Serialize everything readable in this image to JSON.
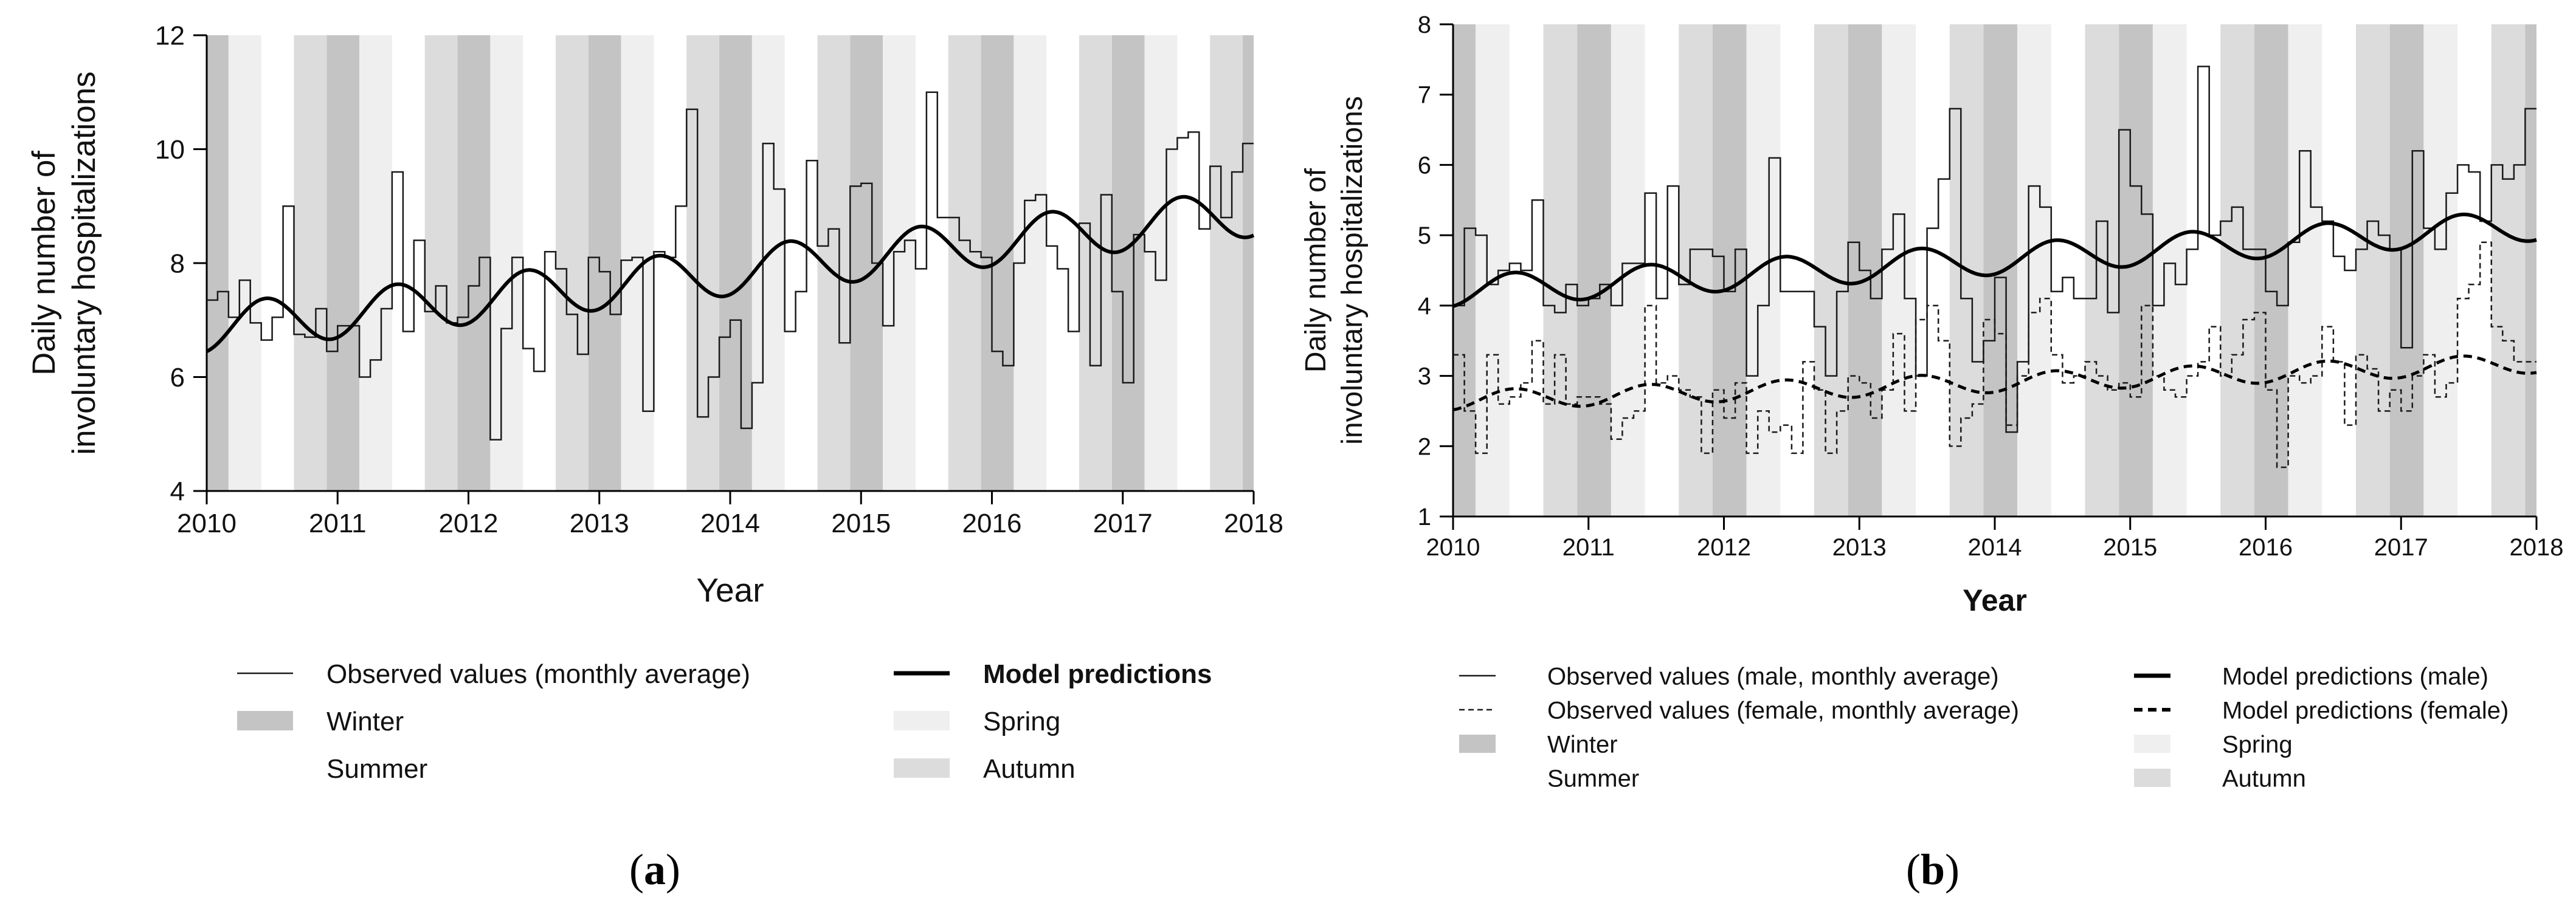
{
  "colors": {
    "winter": "#c4c4c4",
    "spring": "#efefef",
    "autumn": "#dcdcdc",
    "summer": "#ffffff",
    "observed": "#1a1a1a",
    "model": "#000000"
  },
  "captions": [
    "a",
    "b"
  ],
  "chart_data": [
    {
      "id": "a",
      "type": "line",
      "ylabel": [
        "Daily number of",
        "involuntary hospitalizations"
      ],
      "xlabel": "Year",
      "xlim": [
        2010,
        2018
      ],
      "ylim": [
        4,
        12
      ],
      "yticks": [
        4,
        6,
        8,
        10,
        12
      ],
      "xticks": [
        2010,
        2011,
        2012,
        2013,
        2014,
        2015,
        2016,
        2017,
        2018
      ],
      "seasons": {
        "note": "bands start Dec 1 (winter), Mar 1 (spring), Jun 1 (summer), Sep 1 (autumn)",
        "months": {
          "winter": 11,
          "spring": 2,
          "summer": 5,
          "autumn": 8
        }
      },
      "series": [
        {
          "name": "Observed values (monthly average)",
          "style": "observed-solid",
          "monthly": [
            7.35,
            7.5,
            7.05,
            7.7,
            6.95,
            6.65,
            7.05,
            9.0,
            6.75,
            6.7,
            7.2,
            6.45,
            6.9,
            6.9,
            6.0,
            6.3,
            7.2,
            9.6,
            6.8,
            8.4,
            7.15,
            7.6,
            6.95,
            7.05,
            7.6,
            8.1,
            4.9,
            6.85,
            8.1,
            6.5,
            6.1,
            8.2,
            7.9,
            7.1,
            6.4,
            8.1,
            7.85,
            7.1,
            8.05,
            8.1,
            5.4,
            8.2,
            8.1,
            9.0,
            10.7,
            5.3,
            6.0,
            6.7,
            7.0,
            5.1,
            5.9,
            10.1,
            9.3,
            6.8,
            7.5,
            9.8,
            8.3,
            8.6,
            6.6,
            9.35,
            9.4,
            8.0,
            6.9,
            8.2,
            8.4,
            7.9,
            11.0,
            8.8,
            8.8,
            8.4,
            8.2,
            8.1,
            6.45,
            6.2,
            8.0,
            9.1,
            9.2,
            8.3,
            7.9,
            6.8,
            8.7,
            6.2,
            9.2,
            7.5,
            5.9,
            8.5,
            8.2,
            7.7,
            10.0,
            10.2,
            10.3,
            8.6,
            9.7,
            8.8,
            9.6,
            10.1
          ]
        },
        {
          "name": "Model predictions",
          "style": "model-solid",
          "model": {
            "a": 6.85,
            "b": 0.245,
            "c": 0.0012,
            "amp": 0.42,
            "peak": 0.45
          }
        }
      ],
      "legend": [
        {
          "key": "observed-solid",
          "label": "Observed values (monthly average)"
        },
        {
          "key": "model-solid",
          "label": "Model predictions"
        },
        {
          "key": "winter",
          "label": "Winter"
        },
        {
          "key": "spring",
          "label": "Spring"
        },
        {
          "key": "summer",
          "label": "Summer"
        },
        {
          "key": "autumn",
          "label": "Autumn"
        }
      ]
    },
    {
      "id": "b",
      "type": "line",
      "ylabel": [
        "Daily number of",
        "involuntary hospitalizations"
      ],
      "xlabel": "Year",
      "xlim": [
        2010,
        2018
      ],
      "ylim": [
        1,
        8
      ],
      "yticks": [
        1,
        2,
        3,
        4,
        5,
        6,
        7,
        8
      ],
      "xticks": [
        2010,
        2011,
        2012,
        2013,
        2014,
        2015,
        2016,
        2017,
        2018
      ],
      "seasons": {
        "note": "bands start Dec 1 (winter), Mar 1 (spring), Jun 1 (summer), Sep 1 (autumn)",
        "months": {
          "winter": 11,
          "spring": 2,
          "summer": 5,
          "autumn": 8
        }
      },
      "series": [
        {
          "name": "Observed values (male, monthly average)",
          "style": "observed-solid",
          "monthly": [
            4.0,
            5.1,
            5.0,
            4.3,
            4.5,
            4.6,
            4.5,
            5.5,
            4.0,
            3.9,
            4.3,
            4.0,
            4.1,
            4.3,
            4.0,
            4.6,
            4.6,
            5.6,
            4.1,
            5.7,
            4.3,
            4.8,
            4.8,
            4.7,
            4.2,
            4.8,
            3.0,
            4.0,
            6.1,
            4.2,
            4.2,
            4.2,
            3.7,
            3.0,
            4.2,
            4.9,
            4.5,
            4.1,
            4.8,
            5.3,
            4.1,
            3.0,
            5.1,
            5.8,
            6.8,
            4.1,
            3.2,
            3.5,
            4.4,
            2.2,
            3.2,
            5.7,
            5.4,
            4.2,
            4.4,
            4.1,
            4.1,
            5.2,
            3.9,
            6.5,
            5.7,
            5.3,
            4.0,
            4.6,
            4.3,
            4.8,
            7.4,
            5.0,
            5.2,
            5.4,
            4.8,
            4.8,
            4.2,
            4.0,
            4.9,
            6.2,
            5.4,
            5.2,
            4.7,
            4.5,
            4.8,
            5.2,
            5.0,
            4.8,
            3.4,
            6.2,
            5.1,
            4.8,
            5.6,
            6.0,
            5.9,
            5.2,
            6.0,
            5.8,
            6.0,
            6.8
          ]
        },
        {
          "name": "Observed values (female, monthly average)",
          "style": "observed-dashed",
          "monthly": [
            3.3,
            2.5,
            1.9,
            3.3,
            2.6,
            2.7,
            2.9,
            3.5,
            2.6,
            3.3,
            2.6,
            2.7,
            2.7,
            2.6,
            2.1,
            2.4,
            2.5,
            4.0,
            2.9,
            3.0,
            2.8,
            2.7,
            1.9,
            2.8,
            2.4,
            2.9,
            1.9,
            2.5,
            2.2,
            2.3,
            1.9,
            3.2,
            2.8,
            1.9,
            2.5,
            3.0,
            2.9,
            2.4,
            2.8,
            3.6,
            2.5,
            3.8,
            4.0,
            3.5,
            2.0,
            2.4,
            2.6,
            3.8,
            3.6,
            2.3,
            3.0,
            3.9,
            4.1,
            3.3,
            2.9,
            3.0,
            3.2,
            3.0,
            2.8,
            2.9,
            2.7,
            4.0,
            3.0,
            2.8,
            2.7,
            3.0,
            3.2,
            3.7,
            3.0,
            3.3,
            3.8,
            3.9,
            2.8,
            1.7,
            3.0,
            2.9,
            3.0,
            3.7,
            3.2,
            2.3,
            3.3,
            3.1,
            2.5,
            2.8,
            2.5,
            3.0,
            3.3,
            2.7,
            2.9,
            4.1,
            4.3,
            4.9,
            3.7,
            3.5,
            3.2,
            3.2
          ]
        },
        {
          "name": "Model predictions (male)",
          "style": "model-solid",
          "model": {
            "a": 4.2,
            "b": 0.11,
            "c": 0.001,
            "amp": 0.22,
            "peak": 0.45
          }
        },
        {
          "name": "Model predictions (female)",
          "style": "model-dashed",
          "model": {
            "a": 2.65,
            "b": 0.06,
            "c": 0.0008,
            "amp": 0.14,
            "peak": 0.45
          }
        }
      ],
      "legend": [
        {
          "key": "observed-solid",
          "label": "Observed values (male, monthly average)"
        },
        {
          "key": "model-solid",
          "label": "Model predictions (male)"
        },
        {
          "key": "observed-dashed",
          "label": "Observed values (female, monthly average)"
        },
        {
          "key": "model-dashed",
          "label": "Model predictions (female)"
        },
        {
          "key": "winter",
          "label": "Winter"
        },
        {
          "key": "spring",
          "label": "Spring"
        },
        {
          "key": "summer",
          "label": "Summer"
        },
        {
          "key": "autumn",
          "label": "Autumn"
        }
      ]
    }
  ]
}
